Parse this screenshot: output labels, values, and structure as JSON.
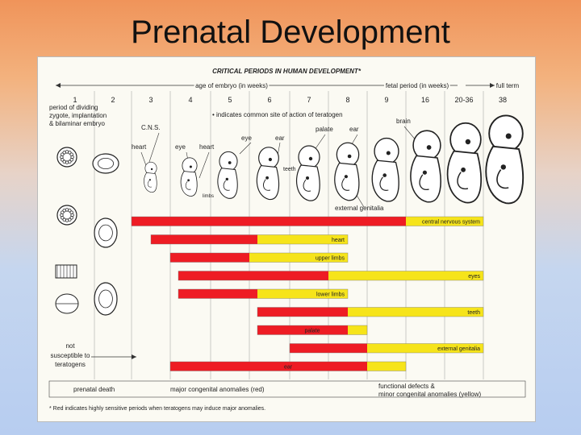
{
  "slide": {
    "title": "Prenatal Development"
  },
  "chart": {
    "heading": "CRITICAL PERIODS IN HUMAN DEVELOPMENT*",
    "embryo_axis_label": "age of embryo (in weeks)",
    "fetal_axis_label": "fetal period (in weeks)",
    "full_term_label": "full term",
    "weeks": [
      "1",
      "2",
      "3",
      "4",
      "5",
      "6",
      "7",
      "8",
      "9",
      "16",
      "20-36",
      "38"
    ],
    "period_note": "period of dividing zygote, implantation & bilaminar embryo",
    "period_note_lines": [
      "period of dividing",
      "zygote, implantation",
      "& bilaminar embryo"
    ],
    "legend_note": "• indicates common site of action of teratogen",
    "structure_labels": [
      "C.N.S.",
      "heart",
      "eye",
      "heart",
      "eye",
      "ear",
      "palate",
      "ear",
      "teeth",
      "brain",
      "limbs",
      "external genitalia"
    ],
    "not_susceptible_lines": [
      "not",
      "susceptible to",
      "teratogens"
    ],
    "prenatal_death": "prenatal death",
    "major_anomalies": "major congenital anomalies (red)",
    "functional_defects_lines": [
      "functional defects &",
      "minor congenital anomalies (yellow)"
    ],
    "footnote": "* Red indicates highly sensitive periods when teratogens may induce major anomalies.",
    "colors": {
      "red": "#ee1c24",
      "yellow": "#f6e41a",
      "grid": "#9a9a9a"
    },
    "bars": [
      {
        "label": "central nervous system",
        "red": [
          3,
          16
        ],
        "yellow": [
          16,
          38
        ]
      },
      {
        "label": "heart",
        "red": [
          3.5,
          6.2
        ],
        "yellow": [
          6.2,
          8.5
        ]
      },
      {
        "label": "upper limbs",
        "red": [
          4,
          6
        ],
        "yellow": [
          6,
          8.5
        ]
      },
      {
        "label": "eyes",
        "red": [
          4.2,
          8
        ],
        "yellow": [
          8,
          38
        ]
      },
      {
        "label": "lower limbs",
        "red": [
          4.2,
          6.2
        ],
        "yellow": [
          6.2,
          8.5
        ]
      },
      {
        "label": "teeth",
        "red": [
          6.2,
          8.5
        ],
        "yellow": [
          8.5,
          38
        ]
      },
      {
        "label": "palate",
        "red": [
          6.2,
          8.5
        ],
        "yellow": [
          8.5,
          9
        ]
      },
      {
        "label": "external genitalia",
        "red": [
          7,
          9
        ],
        "yellow": [
          9,
          38
        ]
      },
      {
        "label": "ear",
        "red": [
          4,
          9
        ],
        "yellow": [
          9,
          16
        ]
      }
    ]
  }
}
